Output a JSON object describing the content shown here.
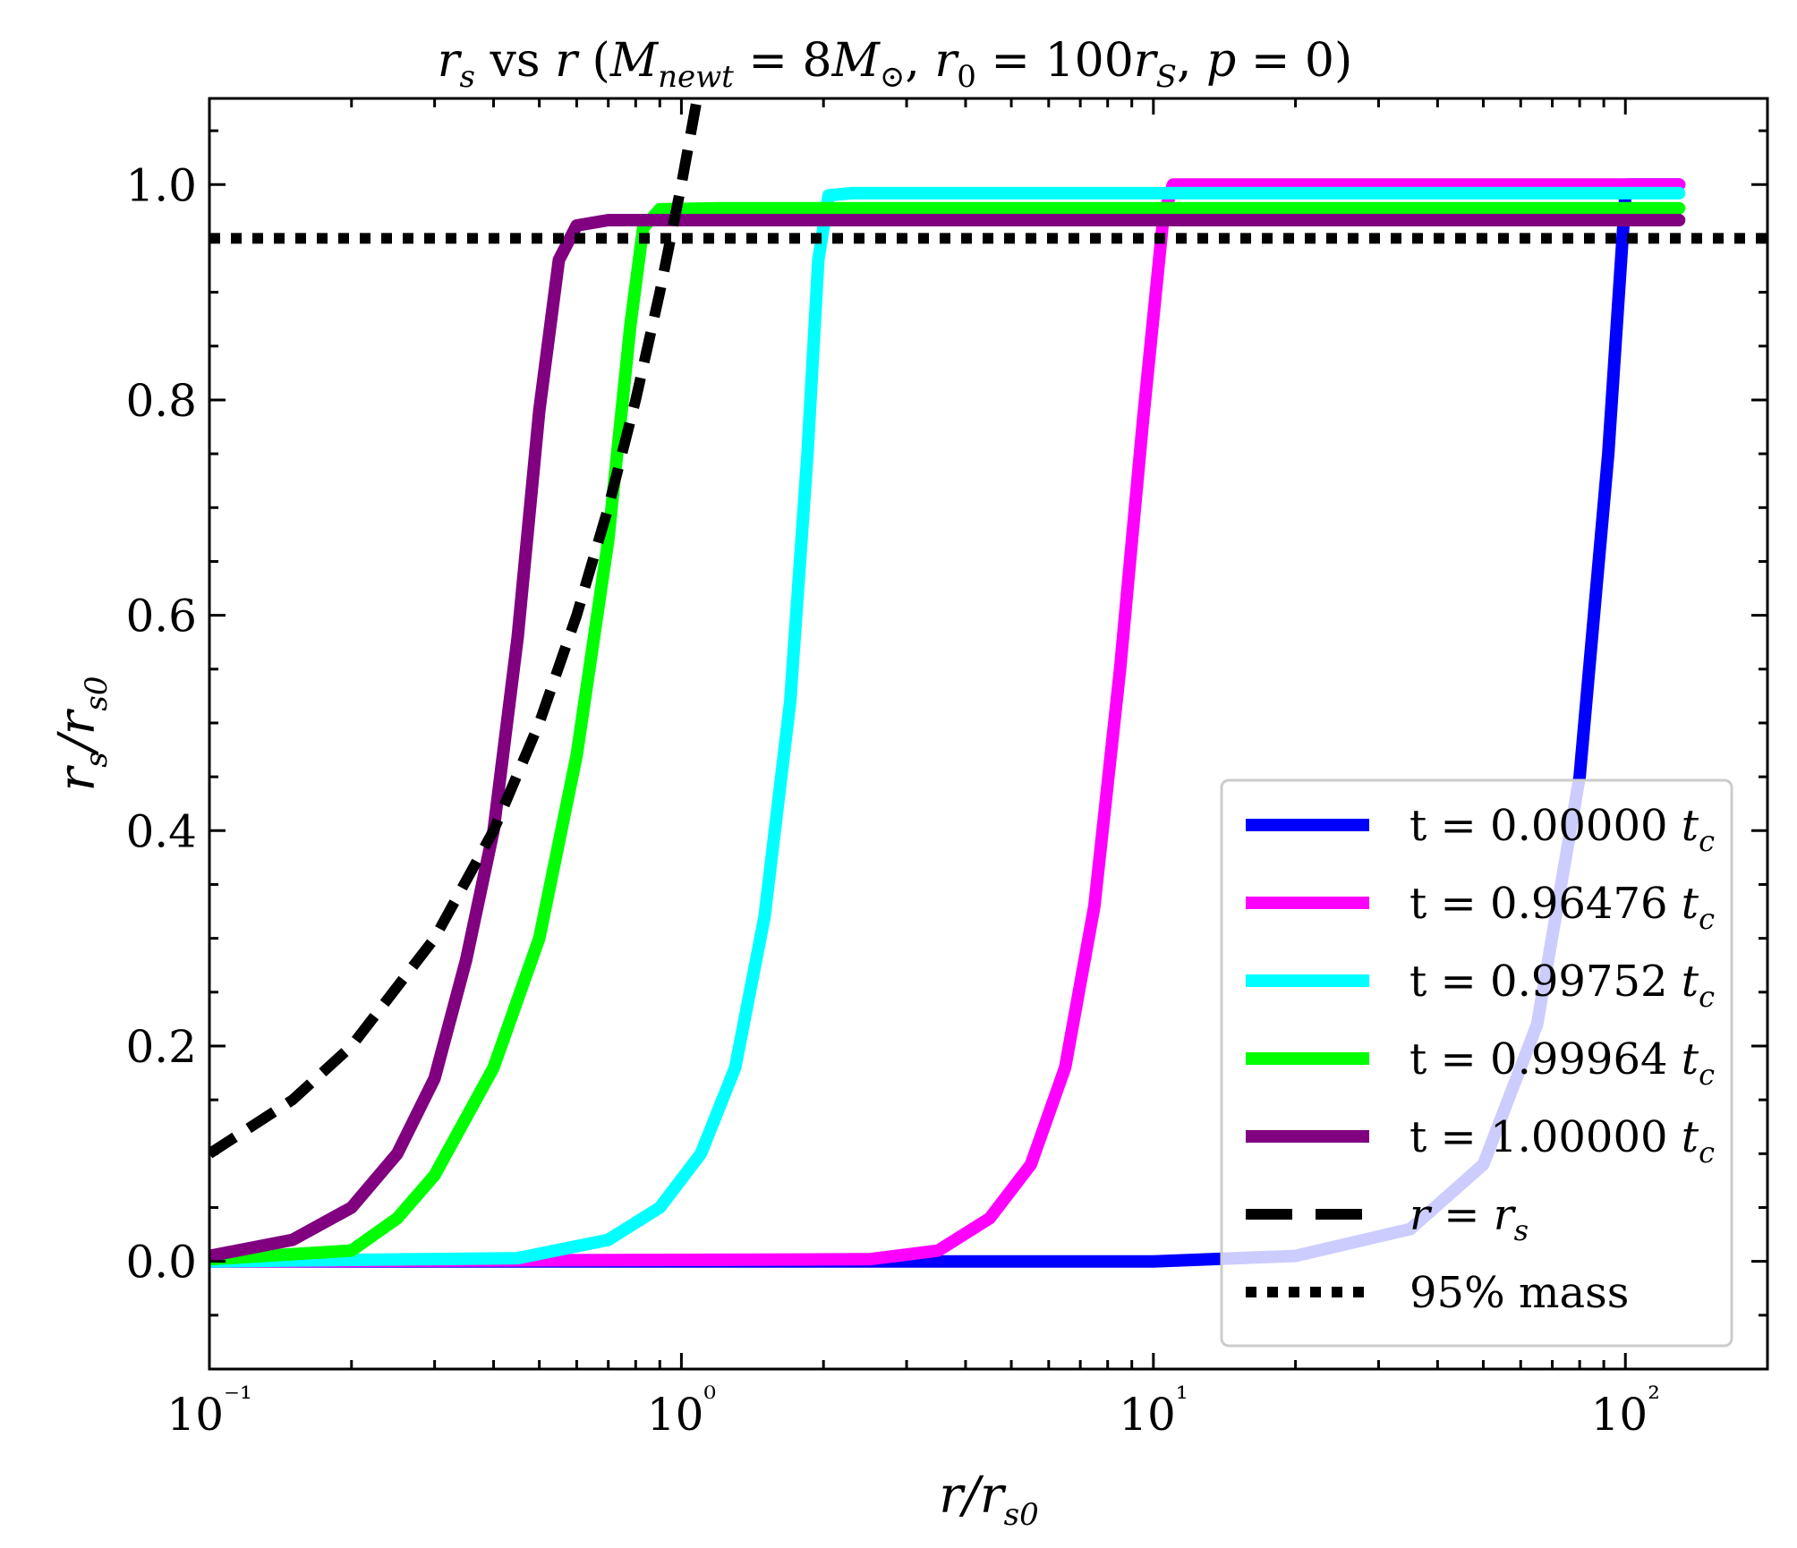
{
  "chart_data": {
    "type": "line",
    "title": "r_s vs r (M_newt = 8M_⊙, r_0 = 100r_S, p = 0)",
    "xlabel": "r/r_s0",
    "ylabel": "r_s/r_s0",
    "xscale": "log",
    "xlim": [
      0.1,
      200
    ],
    "ylim": [
      -0.1,
      1.08
    ],
    "xticks": [
      0.1,
      1,
      10,
      100
    ],
    "xtick_labels": [
      "10⁻¹",
      "10⁰",
      "10¹",
      "10²"
    ],
    "yticks": [
      0.0,
      0.2,
      0.4,
      0.6,
      0.8,
      1.0
    ],
    "ytick_labels": [
      "0.0",
      "0.2",
      "0.4",
      "0.6",
      "0.8",
      "1.0"
    ],
    "grid": false,
    "legend_position": "lower right",
    "series": [
      {
        "name": "t = 0.00000 t_c",
        "color": "#0000ff",
        "style": "solid",
        "points": [
          [
            0.1,
            0.0
          ],
          [
            10,
            0.0
          ],
          [
            20,
            0.005
          ],
          [
            35,
            0.03
          ],
          [
            50,
            0.09
          ],
          [
            65,
            0.22
          ],
          [
            80,
            0.45
          ],
          [
            92,
            0.75
          ],
          [
            100,
            0.99
          ],
          [
            101,
            1.0
          ],
          [
            130,
            1.0
          ]
        ]
      },
      {
        "name": "t = 0.96476 t_c",
        "color": "#ff00ff",
        "style": "solid",
        "points": [
          [
            0.1,
            0.0
          ],
          [
            2.5,
            0.002
          ],
          [
            3.5,
            0.01
          ],
          [
            4.5,
            0.04
          ],
          [
            5.5,
            0.09
          ],
          [
            6.5,
            0.18
          ],
          [
            7.5,
            0.33
          ],
          [
            8.5,
            0.55
          ],
          [
            9.5,
            0.78
          ],
          [
            10.5,
            0.97
          ],
          [
            11,
            1.0
          ],
          [
            130,
            1.0
          ]
        ]
      },
      {
        "name": "t = 0.99752 t_c",
        "color": "#00ffff",
        "style": "solid",
        "points": [
          [
            0.1,
            0.0
          ],
          [
            0.45,
            0.003
          ],
          [
            0.7,
            0.02
          ],
          [
            0.9,
            0.05
          ],
          [
            1.1,
            0.1
          ],
          [
            1.3,
            0.18
          ],
          [
            1.5,
            0.32
          ],
          [
            1.7,
            0.52
          ],
          [
            1.85,
            0.75
          ],
          [
            1.95,
            0.93
          ],
          [
            2.05,
            0.99
          ],
          [
            2.3,
            0.992
          ],
          [
            130,
            0.992
          ]
        ]
      },
      {
        "name": "t = 0.99964 t_c",
        "color": "#00ff00",
        "style": "solid",
        "points": [
          [
            0.1,
            0.002
          ],
          [
            0.2,
            0.01
          ],
          [
            0.25,
            0.04
          ],
          [
            0.3,
            0.08
          ],
          [
            0.4,
            0.18
          ],
          [
            0.5,
            0.3
          ],
          [
            0.6,
            0.47
          ],
          [
            0.7,
            0.67
          ],
          [
            0.78,
            0.87
          ],
          [
            0.83,
            0.96
          ],
          [
            0.9,
            0.977
          ],
          [
            1.2,
            0.978
          ],
          [
            130,
            0.978
          ]
        ]
      },
      {
        "name": "t = 1.00000 t_c",
        "color": "#800080",
        "style": "solid",
        "points": [
          [
            0.1,
            0.005
          ],
          [
            0.15,
            0.02
          ],
          [
            0.2,
            0.05
          ],
          [
            0.25,
            0.1
          ],
          [
            0.3,
            0.17
          ],
          [
            0.35,
            0.28
          ],
          [
            0.4,
            0.4
          ],
          [
            0.45,
            0.58
          ],
          [
            0.5,
            0.79
          ],
          [
            0.55,
            0.93
          ],
          [
            0.6,
            0.962
          ],
          [
            0.7,
            0.967
          ],
          [
            130,
            0.967
          ]
        ]
      },
      {
        "name": "r = r_s",
        "color": "#000000",
        "style": "dashed",
        "points": [
          [
            0.1,
            0.1
          ],
          [
            0.15,
            0.15
          ],
          [
            0.2,
            0.2
          ],
          [
            0.3,
            0.3
          ],
          [
            0.4,
            0.4
          ],
          [
            0.5,
            0.5
          ],
          [
            0.6,
            0.6
          ],
          [
            0.7,
            0.7
          ],
          [
            0.8,
            0.8
          ],
          [
            0.9,
            0.9
          ],
          [
            1.0,
            1.0
          ],
          [
            1.08,
            1.08
          ]
        ]
      },
      {
        "name": "95% mass",
        "color": "#000000",
        "style": "dotted",
        "points": [
          [
            0.1,
            0.95
          ],
          [
            200,
            0.95
          ]
        ]
      }
    ]
  }
}
